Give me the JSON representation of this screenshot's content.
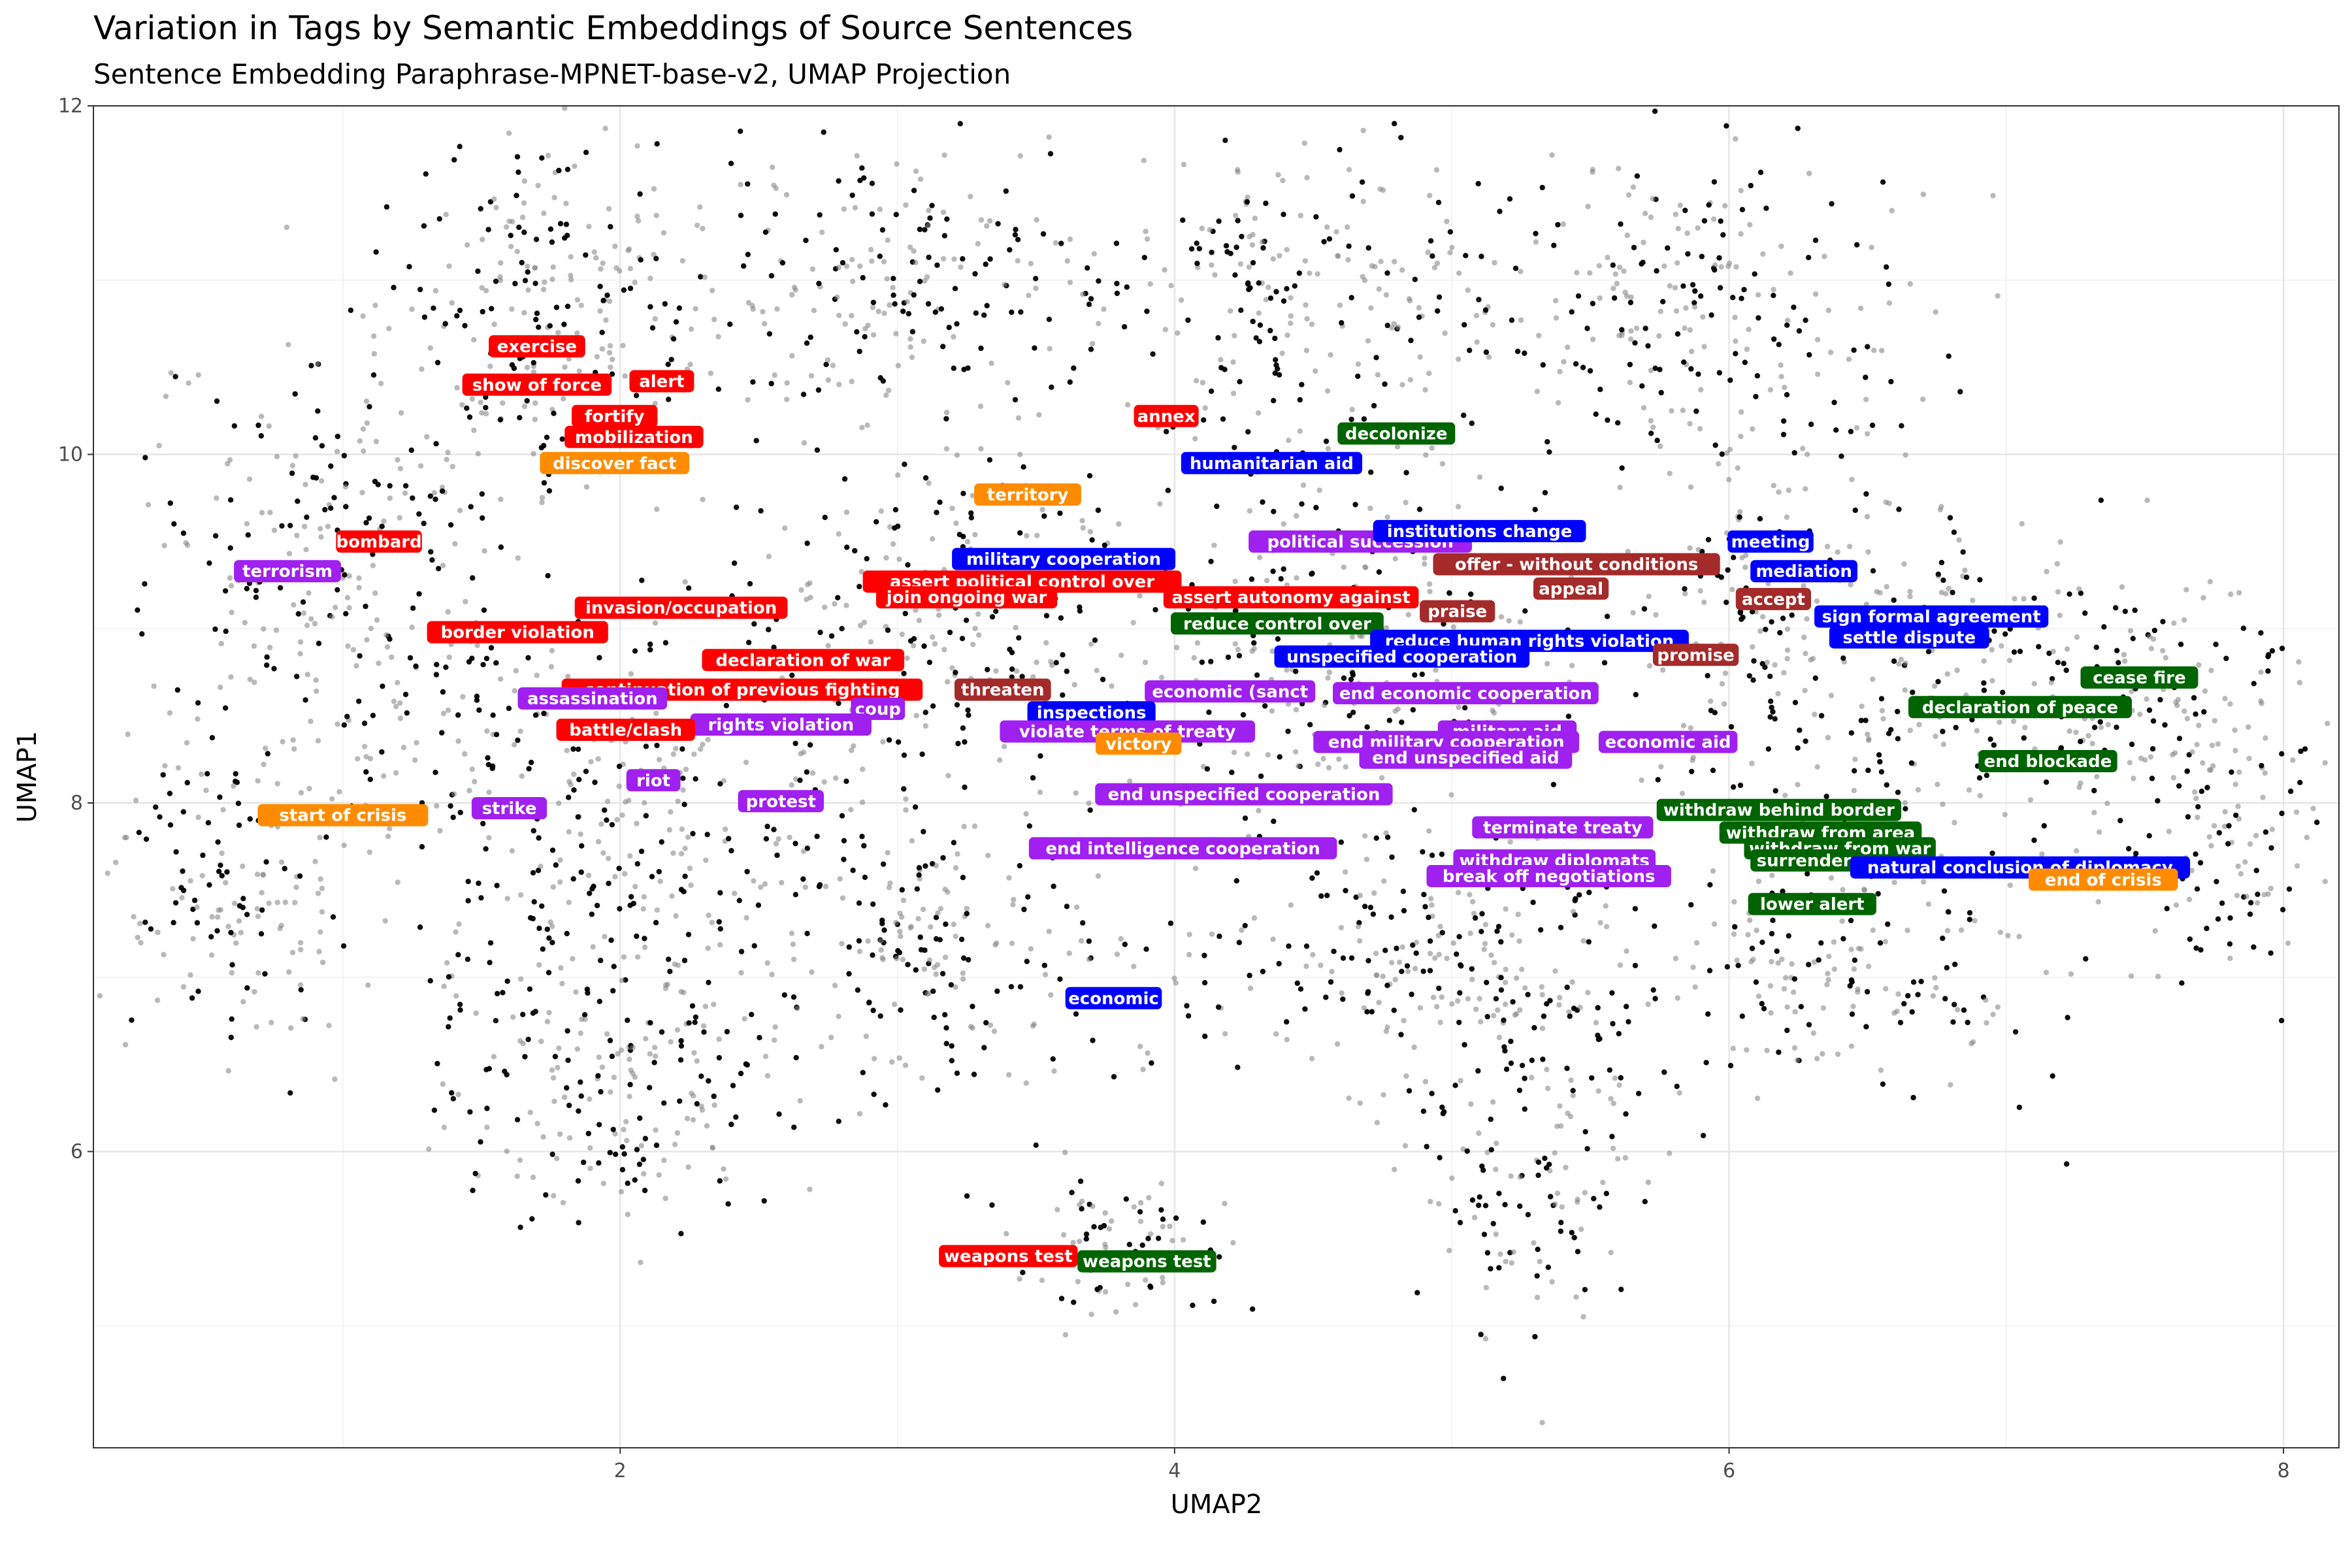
{
  "chart_data": {
    "type": "scatter",
    "title": "Variation in Tags by Semantic Embeddings of Source Sentences",
    "subtitle": "Sentence Embedding Paraphrase-MPNET-base-v2, UMAP Projection",
    "xlabel": "UMAP2",
    "ylabel": "UMAP1",
    "xlim": [
      0.1,
      8.2
    ],
    "ylim": [
      4.3,
      12.0
    ],
    "x_ticks": [
      2,
      4,
      6,
      8
    ],
    "y_ticks": [
      6,
      8,
      10,
      12
    ],
    "grid": true,
    "legend": "none",
    "point_clusters": [
      {
        "x": 1.8,
        "y": 10.8,
        "sx": 0.45,
        "sy": 0.7,
        "n": 260
      },
      {
        "x": 1.0,
        "y": 9.3,
        "sx": 0.5,
        "sy": 0.9,
        "n": 300
      },
      {
        "x": 0.6,
        "y": 7.5,
        "sx": 0.35,
        "sy": 0.6,
        "n": 160
      },
      {
        "x": 2.0,
        "y": 7.8,
        "sx": 0.6,
        "sy": 0.8,
        "n": 320
      },
      {
        "x": 2.0,
        "y": 6.4,
        "sx": 0.45,
        "sy": 0.6,
        "n": 220
      },
      {
        "x": 3.0,
        "y": 11.0,
        "sx": 0.5,
        "sy": 0.55,
        "n": 220
      },
      {
        "x": 3.2,
        "y": 9.1,
        "sx": 0.6,
        "sy": 0.7,
        "n": 280
      },
      {
        "x": 3.2,
        "y": 7.2,
        "sx": 0.5,
        "sy": 0.6,
        "n": 220
      },
      {
        "x": 3.8,
        "y": 5.4,
        "sx": 0.3,
        "sy": 0.3,
        "n": 90
      },
      {
        "x": 4.5,
        "y": 10.9,
        "sx": 0.5,
        "sy": 0.6,
        "n": 240
      },
      {
        "x": 4.6,
        "y": 9.0,
        "sx": 0.5,
        "sy": 0.7,
        "n": 260
      },
      {
        "x": 4.8,
        "y": 7.2,
        "sx": 0.5,
        "sy": 0.6,
        "n": 220
      },
      {
        "x": 5.3,
        "y": 6.2,
        "sx": 0.35,
        "sy": 0.9,
        "n": 200
      },
      {
        "x": 5.9,
        "y": 10.8,
        "sx": 0.55,
        "sy": 0.7,
        "n": 260
      },
      {
        "x": 6.3,
        "y": 9.0,
        "sx": 0.55,
        "sy": 0.7,
        "n": 260
      },
      {
        "x": 6.4,
        "y": 7.2,
        "sx": 0.5,
        "sy": 0.6,
        "n": 220
      },
      {
        "x": 7.3,
        "y": 8.6,
        "sx": 0.5,
        "sy": 0.6,
        "n": 220
      },
      {
        "x": 7.8,
        "y": 7.8,
        "sx": 0.3,
        "sy": 0.6,
        "n": 120
      }
    ],
    "tags": [
      {
        "label": "exercise",
        "x": 1.7,
        "y": 10.62,
        "color": "#ff0000"
      },
      {
        "label": "show of force",
        "x": 1.7,
        "y": 10.4,
        "color": "#ff0000"
      },
      {
        "label": "alert",
        "x": 2.15,
        "y": 10.42,
        "color": "#ff0000"
      },
      {
        "label": "fortify",
        "x": 1.98,
        "y": 10.22,
        "color": "#ff0000"
      },
      {
        "label": "mobilization",
        "x": 2.05,
        "y": 10.1,
        "color": "#ff0000"
      },
      {
        "label": "discover fact",
        "x": 1.98,
        "y": 9.95,
        "color": "#ff8c00"
      },
      {
        "label": "annex",
        "x": 3.97,
        "y": 10.22,
        "color": "#ff0000"
      },
      {
        "label": "decolonize",
        "x": 4.8,
        "y": 10.12,
        "color": "#006400"
      },
      {
        "label": "humanitarian aid",
        "x": 4.35,
        "y": 9.95,
        "color": "#0000ff"
      },
      {
        "label": "territory",
        "x": 3.47,
        "y": 9.77,
        "color": "#ff8c00"
      },
      {
        "label": "bombard",
        "x": 1.13,
        "y": 9.5,
        "color": "#ff0000"
      },
      {
        "label": "terrorism",
        "x": 0.8,
        "y": 9.33,
        "color": "#a020f0"
      },
      {
        "label": "political succession",
        "x": 4.67,
        "y": 9.5,
        "color": "#a020f0"
      },
      {
        "label": "institutions change",
        "x": 5.1,
        "y": 9.56,
        "color": "#0000ff"
      },
      {
        "label": "meeting",
        "x": 6.15,
        "y": 9.5,
        "color": "#0000ff"
      },
      {
        "label": "military cooperation",
        "x": 3.6,
        "y": 9.4,
        "color": "#0000ff"
      },
      {
        "label": "offer - without conditions",
        "x": 5.45,
        "y": 9.37,
        "color": "#a52a2a"
      },
      {
        "label": "mediation",
        "x": 6.27,
        "y": 9.33,
        "color": "#0000ff"
      },
      {
        "label": "assert political control over",
        "x": 3.45,
        "y": 9.27,
        "color": "#ff0000"
      },
      {
        "label": "join ongoing war",
        "x": 3.25,
        "y": 9.18,
        "color": "#ff0000"
      },
      {
        "label": "assert autonomy against",
        "x": 4.42,
        "y": 9.18,
        "color": "#ff0000"
      },
      {
        "label": "appeal",
        "x": 5.43,
        "y": 9.23,
        "color": "#a52a2a"
      },
      {
        "label": "accept",
        "x": 6.16,
        "y": 9.17,
        "color": "#a52a2a"
      },
      {
        "label": "praise",
        "x": 5.02,
        "y": 9.1,
        "color": "#a52a2a"
      },
      {
        "label": "invasion/occupation",
        "x": 2.22,
        "y": 9.12,
        "color": "#ff0000"
      },
      {
        "label": "border violation",
        "x": 1.63,
        "y": 8.98,
        "color": "#ff0000"
      },
      {
        "label": "reduce control over",
        "x": 4.37,
        "y": 9.03,
        "color": "#006400"
      },
      {
        "label": "sign formal agreement",
        "x": 6.73,
        "y": 9.07,
        "color": "#0000ff"
      },
      {
        "label": "settle dispute",
        "x": 6.65,
        "y": 8.95,
        "color": "#0000ff"
      },
      {
        "label": "reduce human rights violation",
        "x": 5.28,
        "y": 8.93,
        "color": "#0000ff"
      },
      {
        "label": "promise",
        "x": 5.88,
        "y": 8.85,
        "color": "#a52a2a"
      },
      {
        "label": "unspecified cooperation",
        "x": 4.82,
        "y": 8.84,
        "color": "#0000ff"
      },
      {
        "label": "declaration of war",
        "x": 2.66,
        "y": 8.82,
        "color": "#ff0000"
      },
      {
        "label": "cease fire",
        "x": 7.48,
        "y": 8.72,
        "color": "#006400"
      },
      {
        "label": "continuation of previous fighting",
        "x": 2.44,
        "y": 8.65,
        "color": "#ff0000"
      },
      {
        "label": "threaten",
        "x": 3.38,
        "y": 8.65,
        "color": "#a52a2a"
      },
      {
        "label": "economic (sanct",
        "x": 4.2,
        "y": 8.64,
        "color": "#a020f0"
      },
      {
        "label": "end economic cooperation",
        "x": 5.05,
        "y": 8.63,
        "color": "#a020f0"
      },
      {
        "label": "assassination",
        "x": 1.9,
        "y": 8.6,
        "color": "#a020f0"
      },
      {
        "label": "declaration of peace",
        "x": 7.05,
        "y": 8.55,
        "color": "#006400"
      },
      {
        "label": "inspections",
        "x": 3.7,
        "y": 8.52,
        "color": "#0000ff"
      },
      {
        "label": "coup",
        "x": 2.93,
        "y": 8.54,
        "color": "#a020f0"
      },
      {
        "label": "rights violation",
        "x": 2.58,
        "y": 8.45,
        "color": "#a020f0"
      },
      {
        "label": "battle/clash",
        "x": 2.02,
        "y": 8.42,
        "color": "#ff0000"
      },
      {
        "label": "violate terms of treaty",
        "x": 3.83,
        "y": 8.41,
        "color": "#a020f0"
      },
      {
        "label": "military aid",
        "x": 5.2,
        "y": 8.41,
        "color": "#a020f0"
      },
      {
        "label": "end military cooperation",
        "x": 4.98,
        "y": 8.35,
        "color": "#a020f0"
      },
      {
        "label": "economic aid",
        "x": 5.78,
        "y": 8.35,
        "color": "#a020f0"
      },
      {
        "label": "victory",
        "x": 3.87,
        "y": 8.34,
        "color": "#ff8c00"
      },
      {
        "label": "end unspecified aid",
        "x": 5.05,
        "y": 8.26,
        "color": "#a020f0"
      },
      {
        "label": "end blockade",
        "x": 7.15,
        "y": 8.24,
        "color": "#006400"
      },
      {
        "label": "riot",
        "x": 2.12,
        "y": 8.13,
        "color": "#a020f0"
      },
      {
        "label": "end unspecified cooperation",
        "x": 4.25,
        "y": 8.05,
        "color": "#a020f0"
      },
      {
        "label": "protest",
        "x": 2.58,
        "y": 8.01,
        "color": "#a020f0"
      },
      {
        "label": "strike",
        "x": 1.6,
        "y": 7.97,
        "color": "#a020f0"
      },
      {
        "label": "start of crisis",
        "x": 1.0,
        "y": 7.93,
        "color": "#ff8c00"
      },
      {
        "label": "withdraw behind border",
        "x": 6.18,
        "y": 7.96,
        "color": "#006400"
      },
      {
        "label": "terminate treaty",
        "x": 5.4,
        "y": 7.86,
        "color": "#a020f0"
      },
      {
        "label": "withdraw from area",
        "x": 6.33,
        "y": 7.83,
        "color": "#006400"
      },
      {
        "label": "end intelligence cooperation",
        "x": 4.03,
        "y": 7.74,
        "color": "#a020f0"
      },
      {
        "label": "withdraw from war",
        "x": 6.4,
        "y": 7.74,
        "color": "#006400"
      },
      {
        "label": "withdraw diplomats",
        "x": 5.37,
        "y": 7.67,
        "color": "#a020f0"
      },
      {
        "label": "surrender",
        "x": 6.27,
        "y": 7.67,
        "color": "#006400"
      },
      {
        "label": "natural conclusion of diplomacy",
        "x": 7.05,
        "y": 7.63,
        "color": "#0000ff"
      },
      {
        "label": "break off negotiations",
        "x": 5.35,
        "y": 7.58,
        "color": "#a020f0"
      },
      {
        "label": "end of crisis",
        "x": 7.35,
        "y": 7.56,
        "color": "#ff8c00"
      },
      {
        "label": "lower alert",
        "x": 6.3,
        "y": 7.42,
        "color": "#006400"
      },
      {
        "label": "economic",
        "x": 3.78,
        "y": 6.88,
        "color": "#0000ff"
      },
      {
        "label": "weapons test",
        "x": 3.4,
        "y": 5.4,
        "color": "#ff0000"
      },
      {
        "label": "weapons test",
        "x": 3.9,
        "y": 5.37,
        "color": "#006400"
      }
    ]
  }
}
